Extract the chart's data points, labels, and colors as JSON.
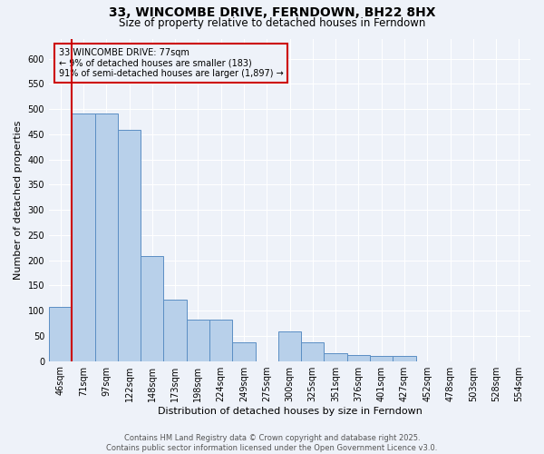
{
  "title": "33, WINCOMBE DRIVE, FERNDOWN, BH22 8HX",
  "subtitle": "Size of property relative to detached houses in Ferndown",
  "xlabel": "Distribution of detached houses by size in Ferndown",
  "ylabel": "Number of detached properties",
  "categories": [
    "46sqm",
    "71sqm",
    "97sqm",
    "122sqm",
    "148sqm",
    "173sqm",
    "198sqm",
    "224sqm",
    "249sqm",
    "275sqm",
    "300sqm",
    "325sqm",
    "351sqm",
    "376sqm",
    "401sqm",
    "427sqm",
    "452sqm",
    "478sqm",
    "503sqm",
    "528sqm",
    "554sqm"
  ],
  "values": [
    107,
    491,
    491,
    459,
    208,
    122,
    83,
    83,
    38,
    0,
    58,
    38,
    15,
    11,
    10,
    10,
    0,
    0,
    0,
    0,
    0
  ],
  "bar_color": "#b8d0ea",
  "bar_edge_color": "#5b8ec4",
  "vline_x_data": 77,
  "annotation_title": "33 WINCOMBE DRIVE: 77sqm",
  "annotation_line1": "← 9% of detached houses are smaller (183)",
  "annotation_line2": "91% of semi-detached houses are larger (1,897) →",
  "annotation_box_color": "#cc0000",
  "ylim": [
    0,
    640
  ],
  "yticks": [
    0,
    50,
    100,
    150,
    200,
    250,
    300,
    350,
    400,
    450,
    500,
    550,
    600
  ],
  "footer_line1": "Contains HM Land Registry data © Crown copyright and database right 2025.",
  "footer_line2": "Contains public sector information licensed under the Open Government Licence v3.0.",
  "bg_color": "#eef2f9",
  "grid_color": "#ffffff",
  "title_fontsize": 10,
  "subtitle_fontsize": 8.5,
  "tick_fontsize": 7,
  "axis_label_fontsize": 8,
  "footer_fontsize": 6
}
